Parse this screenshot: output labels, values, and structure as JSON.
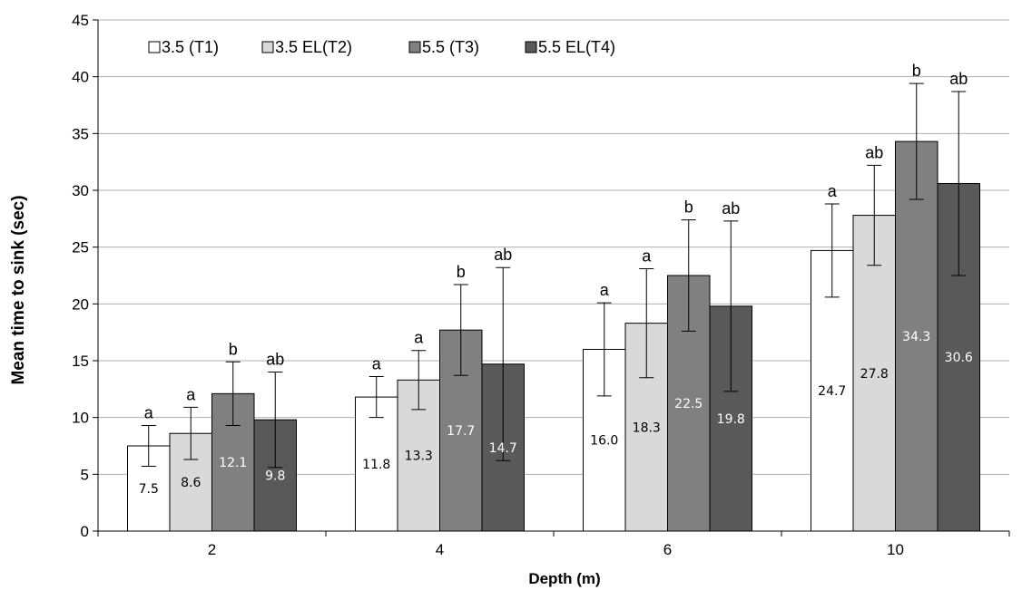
{
  "chart_data": {
    "type": "bar",
    "title": "",
    "xlabel": "Depth (m)",
    "ylabel": "Mean time to sink (sec)",
    "ylim": [
      0,
      45
    ],
    "yticks": [
      0,
      5,
      10,
      15,
      20,
      25,
      30,
      35,
      40,
      45
    ],
    "categories": [
      "2",
      "4",
      "6",
      "10"
    ],
    "grid": true,
    "legend_position": "top-left",
    "series": [
      {
        "name": "3.5 (T1)",
        "color": "#ffffff",
        "label_color": "#000000",
        "values": [
          7.5,
          11.8,
          16.0,
          24.7
        ],
        "value_labels": [
          "7.5",
          "11.8",
          "16.0",
          "24.7"
        ],
        "errors": [
          1.8,
          1.8,
          4.1,
          4.1
        ],
        "significance": [
          "a",
          "a",
          "a",
          "a"
        ]
      },
      {
        "name": "3.5 EL(T2)",
        "color": "#d9d9d9",
        "label_color": "#000000",
        "values": [
          8.6,
          13.3,
          18.3,
          27.8
        ],
        "value_labels": [
          "8.6",
          "13.3",
          "18.3",
          "27.8"
        ],
        "errors": [
          2.3,
          2.6,
          4.8,
          4.4
        ],
        "significance": [
          "a",
          "a",
          "a",
          "ab"
        ]
      },
      {
        "name": "5.5 (T3)",
        "color": "#808080",
        "label_color": "#ffffff",
        "values": [
          12.1,
          17.7,
          22.5,
          34.3
        ],
        "value_labels": [
          "12.1",
          "17.7",
          "22.5",
          "34.3"
        ],
        "errors": [
          2.8,
          4.0,
          4.9,
          5.1
        ],
        "significance": [
          "b",
          "b",
          "b",
          "b"
        ]
      },
      {
        "name": "5.5 EL(T4)",
        "color": "#595959",
        "label_color": "#ffffff",
        "values": [
          9.8,
          14.7,
          19.8,
          30.6
        ],
        "value_labels": [
          "9.8",
          "14.7",
          "19.8",
          "30.6"
        ],
        "errors": [
          4.2,
          8.5,
          7.5,
          8.1
        ],
        "significance": [
          "ab",
          "ab",
          "ab",
          "ab"
        ]
      }
    ]
  }
}
